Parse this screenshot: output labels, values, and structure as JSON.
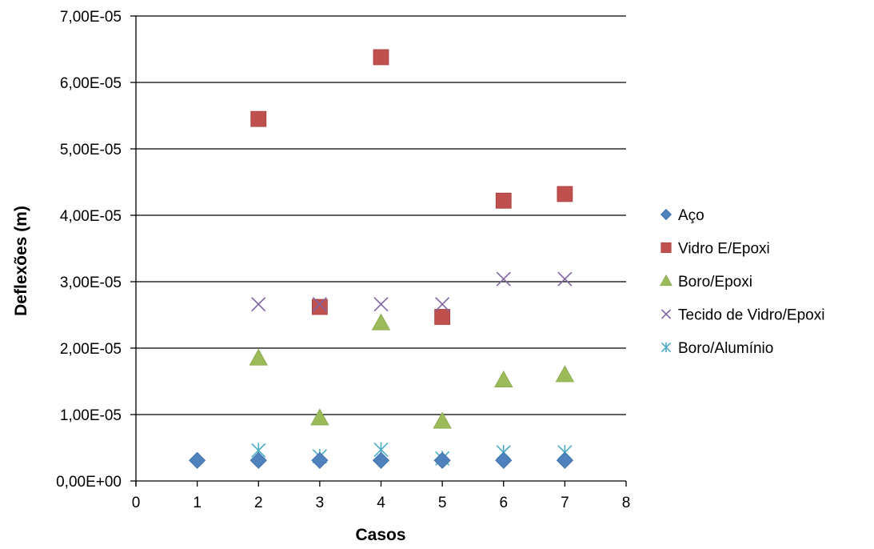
{
  "chart_data": {
    "type": "scatter",
    "title": "",
    "xlabel": "Casos",
    "ylabel": "Deflexões (m)",
    "xlim": [
      0,
      8
    ],
    "ylim": [
      0,
      7e-05
    ],
    "x_ticks": [
      0,
      1,
      2,
      3,
      4,
      5,
      6,
      7,
      8
    ],
    "x_tick_labels": [
      "0",
      "1",
      "2",
      "3",
      "4",
      "5",
      "6",
      "7",
      "8"
    ],
    "y_ticks": [
      0,
      1e-05,
      2e-05,
      3e-05,
      4e-05,
      5e-05,
      6e-05,
      7e-05
    ],
    "y_tick_labels": [
      "0,00E+00",
      "1,00E-05",
      "2,00E-05",
      "3,00E-05",
      "4,00E-05",
      "5,00E-05",
      "6,00E-05",
      "7,00E-05"
    ],
    "grid": "horizontal major gridlines",
    "legend_position": "right",
    "series": [
      {
        "name": "Aço",
        "marker": "diamond",
        "color": "#4f81bd",
        "x": [
          1,
          2,
          3,
          4,
          5,
          6,
          7
        ],
        "y": [
          3.1e-06,
          3.1e-06,
          3.1e-06,
          3.1e-06,
          3.1e-06,
          3.1e-06,
          3.1e-06
        ]
      },
      {
        "name": "Vidro E/Epoxi",
        "marker": "square",
        "color": "#c0504d",
        "x": [
          2,
          3,
          4,
          5,
          6,
          7
        ],
        "y": [
          5.45e-05,
          2.62e-05,
          6.38e-05,
          2.47e-05,
          4.22e-05,
          4.32e-05
        ]
      },
      {
        "name": "Boro/Epoxi",
        "marker": "triangle",
        "color": "#9bbb59",
        "x": [
          2,
          3,
          4,
          5,
          6,
          7
        ],
        "y": [
          1.85e-05,
          9.5e-06,
          2.38e-05,
          9e-06,
          1.52e-05,
          1.6e-05
        ]
      },
      {
        "name": "Tecido de Vidro/Epoxi",
        "marker": "x",
        "color": "#8064a2",
        "x": [
          2,
          3,
          4,
          5,
          6,
          7
        ],
        "y": [
          2.66e-05,
          2.66e-05,
          2.66e-05,
          2.66e-05,
          3.04e-05,
          3.04e-05
        ]
      },
      {
        "name": "Boro/Alumínio",
        "marker": "star",
        "color": "#4bacc6",
        "x": [
          2,
          3,
          4,
          5,
          6,
          7
        ],
        "y": [
          4.6e-06,
          3.7e-06,
          4.7e-06,
          3.4e-06,
          4.3e-06,
          4.3e-06
        ]
      }
    ]
  }
}
